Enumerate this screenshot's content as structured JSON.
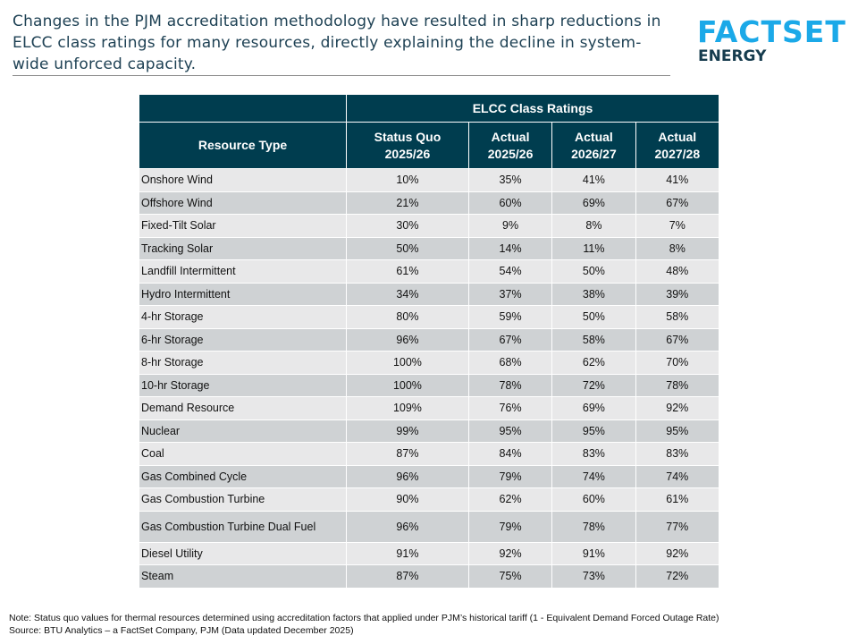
{
  "title": "Changes in the PJM accreditation methodology have resulted in sharp reductions in ELCC class ratings for many resources, directly explaining the decline in system-wide unforced capacity.",
  "logo": {
    "brand": "FACTSET",
    "sub": "ENERGY",
    "color": "#1ba9e8"
  },
  "table": {
    "group_header": "ELCC Class Ratings",
    "columns": [
      [
        "Resource Type"
      ],
      [
        "Status Quo",
        "2025/26"
      ],
      [
        "Actual",
        "2025/26"
      ],
      [
        "Actual",
        "2026/27"
      ],
      [
        "Actual",
        "2027/28"
      ]
    ],
    "rows": [
      [
        "Onshore Wind",
        "10%",
        "35%",
        "41%",
        "41%"
      ],
      [
        "Offshore Wind",
        "21%",
        "60%",
        "69%",
        "67%"
      ],
      [
        "Fixed-Tilt Solar",
        "30%",
        "9%",
        "8%",
        "7%"
      ],
      [
        "Tracking Solar",
        "50%",
        "14%",
        "11%",
        "8%"
      ],
      [
        "Landfill Intermittent",
        "61%",
        "54%",
        "50%",
        "48%"
      ],
      [
        "Hydro Intermittent",
        "34%",
        "37%",
        "38%",
        "39%"
      ],
      [
        "4-hr Storage",
        "80%",
        "59%",
        "50%",
        "58%"
      ],
      [
        "6-hr Storage",
        "96%",
        "67%",
        "58%",
        "67%"
      ],
      [
        "8-hr Storage",
        "100%",
        "68%",
        "62%",
        "70%"
      ],
      [
        "10-hr Storage",
        "100%",
        "78%",
        "72%",
        "78%"
      ],
      [
        "Demand Resource",
        "109%",
        "76%",
        "69%",
        "92%"
      ],
      [
        "Nuclear",
        "99%",
        "95%",
        "95%",
        "95%"
      ],
      [
        "Coal",
        "87%",
        "84%",
        "83%",
        "83%"
      ],
      [
        "Gas Combined Cycle",
        "96%",
        "79%",
        "74%",
        "74%"
      ],
      [
        "Gas Combustion Turbine",
        "90%",
        "62%",
        "60%",
        "61%"
      ],
      [
        "Gas Combustion Turbine Dual Fuel",
        "96%",
        "79%",
        "78%",
        "77%"
      ],
      [
        "Diesel Utility",
        "91%",
        "92%",
        "91%",
        "92%"
      ],
      [
        "Steam",
        "87%",
        "75%",
        "73%",
        "72%"
      ]
    ]
  },
  "note": "Note: Status quo values for thermal resources determined using accreditation factors that applied under PJM’s historical tariff (1 - Equivalent Demand Forced Outage Rate)",
  "source": "Source: BTU Analytics – a FactSet Company, PJM (Data updated December 2025)"
}
